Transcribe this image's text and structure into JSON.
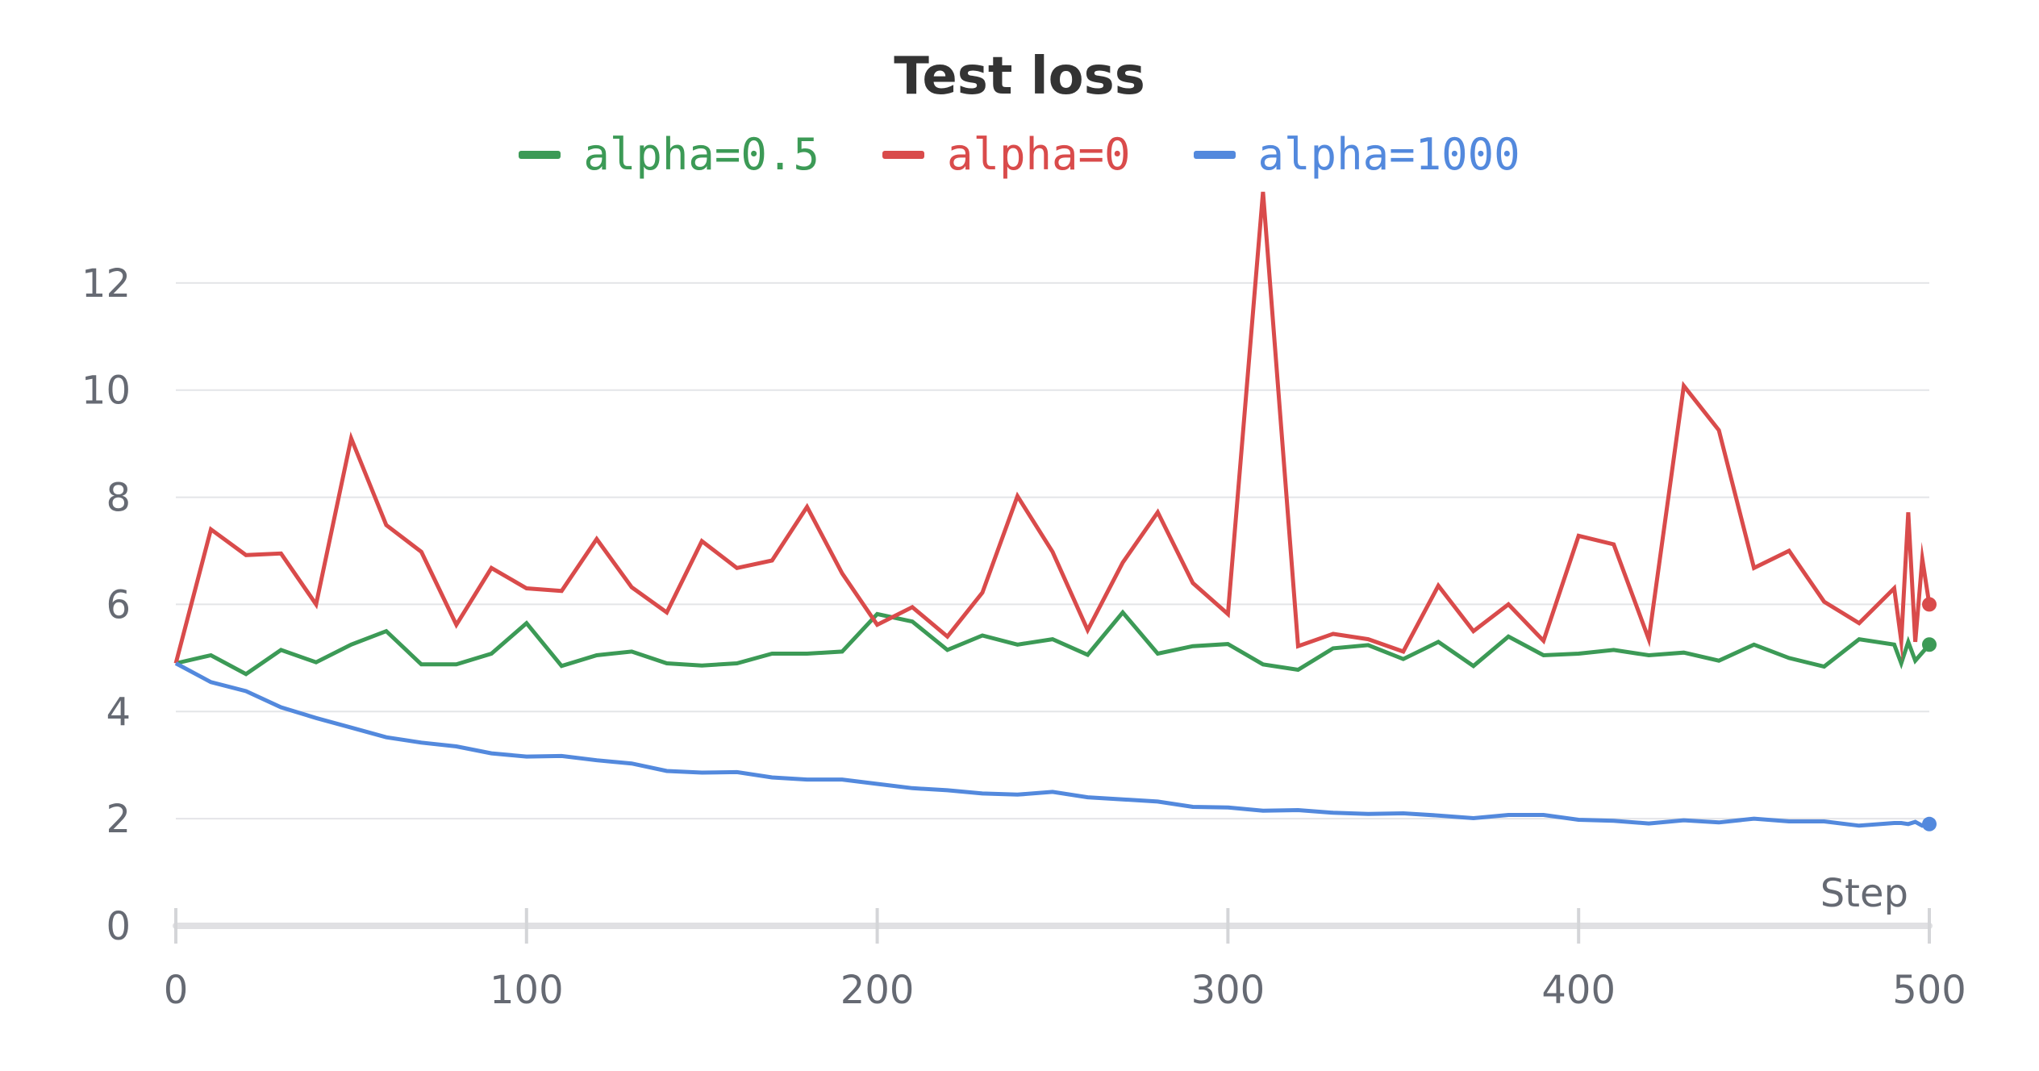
{
  "chart_data": {
    "type": "line",
    "title": "Test loss",
    "xlabel": "Step",
    "ylabel": "",
    "xlim": [
      0,
      500
    ],
    "ylim": [
      0,
      14
    ],
    "xticks": [
      0,
      100,
      200,
      300,
      400,
      500
    ],
    "yticks": [
      0,
      2,
      4,
      6,
      8,
      10,
      12
    ],
    "grid": true,
    "legend_position": "top-center",
    "series": [
      {
        "name": "alpha=0.5",
        "color": "#3c9a56",
        "x": [
          0,
          10,
          20,
          30,
          40,
          50,
          60,
          70,
          80,
          90,
          100,
          110,
          120,
          130,
          140,
          150,
          160,
          170,
          180,
          190,
          200,
          210,
          220,
          230,
          240,
          250,
          260,
          270,
          280,
          290,
          300,
          310,
          320,
          330,
          340,
          350,
          360,
          370,
          380,
          390,
          400,
          410,
          420,
          430,
          440,
          450,
          460,
          470,
          480,
          490,
          492,
          494,
          496,
          498,
          500
        ],
        "y": [
          4.9,
          5.05,
          4.7,
          5.15,
          4.92,
          5.25,
          5.5,
          4.88,
          4.88,
          5.08,
          5.65,
          4.85,
          5.05,
          5.12,
          4.9,
          4.86,
          4.9,
          5.08,
          5.08,
          5.12,
          5.82,
          5.68,
          5.15,
          5.42,
          5.25,
          5.35,
          5.06,
          5.85,
          5.08,
          5.22,
          5.26,
          4.88,
          4.78,
          5.18,
          5.24,
          4.98,
          5.3,
          4.85,
          5.4,
          5.05,
          5.08,
          5.15,
          5.05,
          5.1,
          4.95,
          5.25,
          5.0,
          4.84,
          5.35,
          5.25,
          4.9,
          5.3,
          4.95,
          5.1,
          5.25
        ]
      },
      {
        "name": "alpha=0",
        "color": "#d94b4b",
        "x": [
          0,
          10,
          20,
          30,
          40,
          50,
          60,
          70,
          80,
          90,
          100,
          110,
          120,
          130,
          140,
          150,
          160,
          170,
          180,
          190,
          200,
          210,
          220,
          230,
          240,
          250,
          260,
          270,
          280,
          290,
          300,
          310,
          320,
          330,
          340,
          350,
          360,
          370,
          380,
          390,
          400,
          410,
          420,
          430,
          440,
          450,
          460,
          470,
          480,
          490,
          492,
          494,
          496,
          498,
          500
        ],
        "y": [
          4.9,
          7.4,
          6.92,
          6.95,
          6.0,
          9.1,
          7.48,
          6.98,
          5.62,
          6.68,
          6.3,
          6.25,
          7.22,
          6.32,
          5.85,
          7.18,
          6.68,
          6.82,
          7.82,
          6.58,
          5.62,
          5.95,
          5.4,
          6.22,
          8.02,
          6.98,
          5.52,
          6.78,
          7.72,
          6.4,
          5.82,
          13.7,
          5.22,
          5.45,
          5.35,
          5.12,
          6.35,
          5.5,
          6.0,
          5.32,
          7.28,
          7.12,
          5.35,
          10.08,
          9.25,
          6.68,
          7.0,
          6.05,
          5.65,
          6.3,
          5.32,
          7.72,
          5.3,
          6.85,
          6.0
        ]
      },
      {
        "name": "alpha=1000",
        "color": "#5389dd",
        "x": [
          0,
          10,
          20,
          30,
          40,
          50,
          60,
          70,
          80,
          90,
          100,
          110,
          120,
          130,
          140,
          150,
          160,
          170,
          180,
          190,
          200,
          210,
          220,
          230,
          240,
          250,
          260,
          270,
          280,
          290,
          300,
          310,
          320,
          330,
          340,
          350,
          360,
          370,
          380,
          390,
          400,
          410,
          420,
          430,
          440,
          450,
          460,
          470,
          480,
          490,
          492,
          494,
          496,
          498,
          500
        ],
        "y": [
          4.9,
          4.55,
          4.38,
          4.08,
          3.88,
          3.7,
          3.52,
          3.42,
          3.35,
          3.22,
          3.16,
          3.17,
          3.09,
          3.03,
          2.89,
          2.86,
          2.87,
          2.77,
          2.73,
          2.73,
          2.65,
          2.57,
          2.53,
          2.47,
          2.45,
          2.5,
          2.4,
          2.36,
          2.32,
          2.22,
          2.21,
          2.15,
          2.16,
          2.11,
          2.09,
          2.1,
          2.06,
          2.01,
          2.07,
          2.07,
          1.98,
          1.96,
          1.91,
          1.97,
          1.93,
          2.0,
          1.95,
          1.95,
          1.87,
          1.92,
          1.92,
          1.9,
          1.94,
          1.87,
          1.9
        ]
      }
    ]
  }
}
